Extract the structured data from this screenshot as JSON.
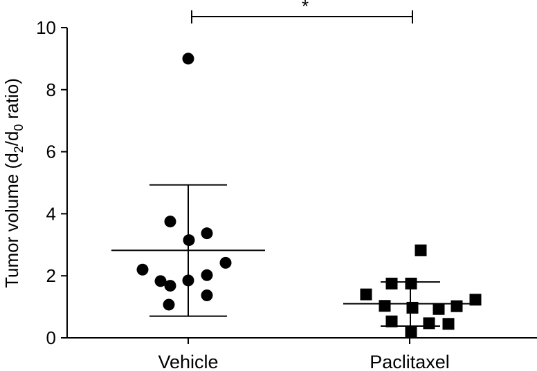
{
  "chart_data": {
    "type": "scatter",
    "categories": [
      "Vehicle",
      "Paclitaxel"
    ],
    "ylabel": {
      "prefix": "Tumor volume (d",
      "sub1": "2",
      "mid": "/d",
      "sub2": "0",
      "suffix": " ratio)"
    },
    "ylim": [
      0,
      10
    ],
    "yticks": [
      "0",
      "2",
      "4",
      "6",
      "8",
      "10"
    ],
    "grid": false,
    "series": [
      {
        "category": "Vehicle",
        "marker": "circle",
        "points": [
          9.0,
          3.75,
          3.37,
          3.15,
          2.42,
          2.2,
          2.02,
          1.85,
          1.83,
          1.68,
          1.37,
          1.07
        ],
        "mean": 2.82,
        "sd_upper": 4.93,
        "sd_lower": 0.7
      },
      {
        "category": "Paclitaxel",
        "marker": "square",
        "points": [
          2.82,
          1.75,
          1.75,
          1.4,
          1.23,
          1.03,
          1.02,
          0.97,
          0.93,
          0.53,
          0.47,
          0.45,
          0.18
        ],
        "mean": 1.1,
        "sd_upper": 1.8,
        "sd_lower": 0.38
      }
    ],
    "significance": {
      "label": "*",
      "from": "Vehicle",
      "to": "Paclitaxel"
    },
    "colors": {
      "marker": "#000000",
      "axis": "#000000"
    }
  }
}
